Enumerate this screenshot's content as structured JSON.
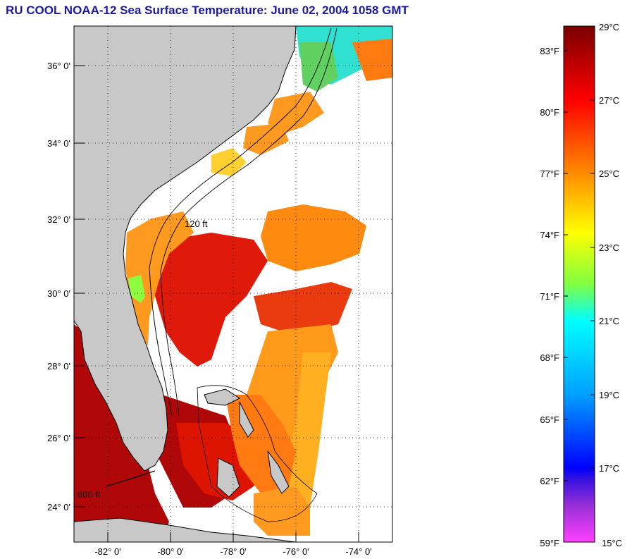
{
  "title": "RU COOL  NOAA-12  Sea Surface Temperature:  June 02, 2004 1058 GMT",
  "map": {
    "lat_labels": [
      "36° 0'",
      "34° 0'",
      "32° 0'",
      "30° 0'",
      "28° 0'",
      "26° 0'",
      "24° 0'"
    ],
    "lon_labels": [
      "-82° 0'",
      "-80° 0'",
      "-78° 0'",
      "-76° 0'",
      "-74° 0'"
    ],
    "depth_label": "120 ft",
    "depth_label_deep": "600 ft"
  },
  "colorbar": {
    "fahrenheit_labels": [
      "83°F",
      "80°F",
      "77°F",
      "74°F",
      "71°F",
      "68°F",
      "65°F",
      "62°F",
      "59°F"
    ],
    "celsius_labels": [
      "29°C",
      "27°C",
      "25°C",
      "23°C",
      "21°C",
      "19°C",
      "17°C",
      "15°C"
    ],
    "range_c": [
      15,
      29
    ],
    "colors": {
      "c29": "#7a0000",
      "c27": "#ff0000",
      "c25": "#ff8c00",
      "c23": "#ffff00",
      "c21": "#00ffff",
      "c19": "#00a0ff",
      "c17": "#0000ff",
      "c16": "#7a2cc8",
      "c15": "#ff40ff"
    }
  },
  "colors": {
    "land": "#c8c8c8",
    "title": "#1a1aa6",
    "water_nodata": "#ffffff"
  }
}
